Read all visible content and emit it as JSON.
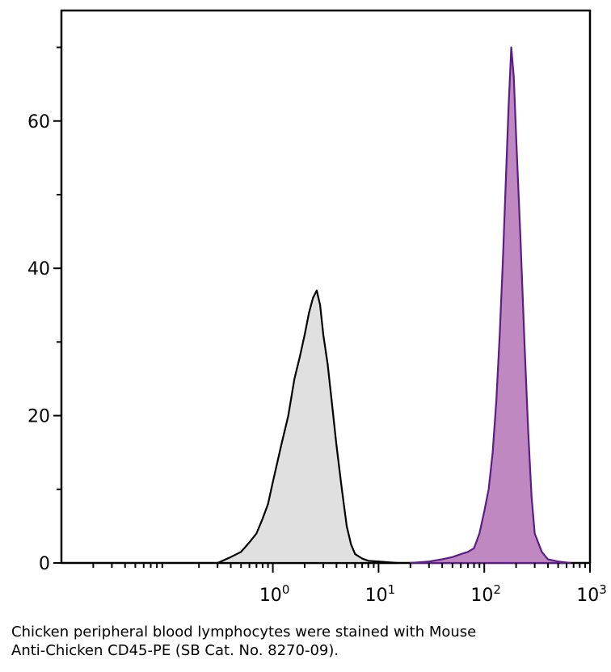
{
  "chart_data": {
    "type": "area",
    "x_scale": "log",
    "xlim": [
      0.01,
      1000
    ],
    "ylim": [
      0,
      75
    ],
    "x_ticks": [
      {
        "value": 1,
        "base": "10",
        "exp": "0"
      },
      {
        "value": 10,
        "base": "10",
        "exp": "1"
      },
      {
        "value": 100,
        "base": "10",
        "exp": "2"
      },
      {
        "value": 1000,
        "base": "10",
        "exp": "3"
      }
    ],
    "y_ticks": [
      {
        "value": 0,
        "label": "0"
      },
      {
        "value": 20,
        "label": "20"
      },
      {
        "value": 40,
        "label": "40"
      },
      {
        "value": 60,
        "label": "60"
      }
    ],
    "y_minor_ticks": [
      10,
      30,
      50,
      70
    ],
    "series": [
      {
        "fill": "#e0e0e0",
        "stroke": "#000000",
        "x": [
          0.3,
          0.4,
          0.5,
          0.6,
          0.7,
          0.8,
          0.9,
          1.0,
          1.2,
          1.4,
          1.6,
          1.8,
          2.0,
          2.2,
          2.4,
          2.6,
          2.8,
          3.0,
          3.3,
          3.6,
          4.0,
          4.5,
          5.0,
          5.5,
          6.0,
          7.0,
          8.0,
          10.0,
          15.0
        ],
        "y": [
          0,
          0.8,
          1.5,
          2.8,
          4,
          6,
          8,
          11,
          16,
          20,
          25,
          28,
          31,
          34,
          36,
          37,
          35,
          31,
          27,
          22,
          16,
          10,
          5,
          2.5,
          1.2,
          0.6,
          0.3,
          0.2,
          0
        ]
      },
      {
        "fill": "#c088c0",
        "stroke": "#5b1d86",
        "x": [
          20,
          30,
          40,
          50,
          60,
          70,
          80,
          90,
          100,
          110,
          120,
          130,
          140,
          150,
          160,
          170,
          180,
          190,
          200,
          220,
          240,
          260,
          280,
          300,
          350,
          400,
          500,
          650
        ],
        "y": [
          0,
          0.2,
          0.5,
          0.8,
          1.2,
          1.5,
          2,
          4,
          7,
          10,
          15,
          22,
          31,
          41,
          52,
          62,
          70,
          66,
          58,
          44,
          30,
          18,
          9,
          4,
          1.5,
          0.5,
          0.2,
          0
        ]
      }
    ]
  },
  "caption": {
    "line1": "Chicken peripheral blood lymphocytes were stained with Mouse",
    "line2": "Anti-Chicken CD45-PE (SB Cat. No. 8270-09)."
  }
}
